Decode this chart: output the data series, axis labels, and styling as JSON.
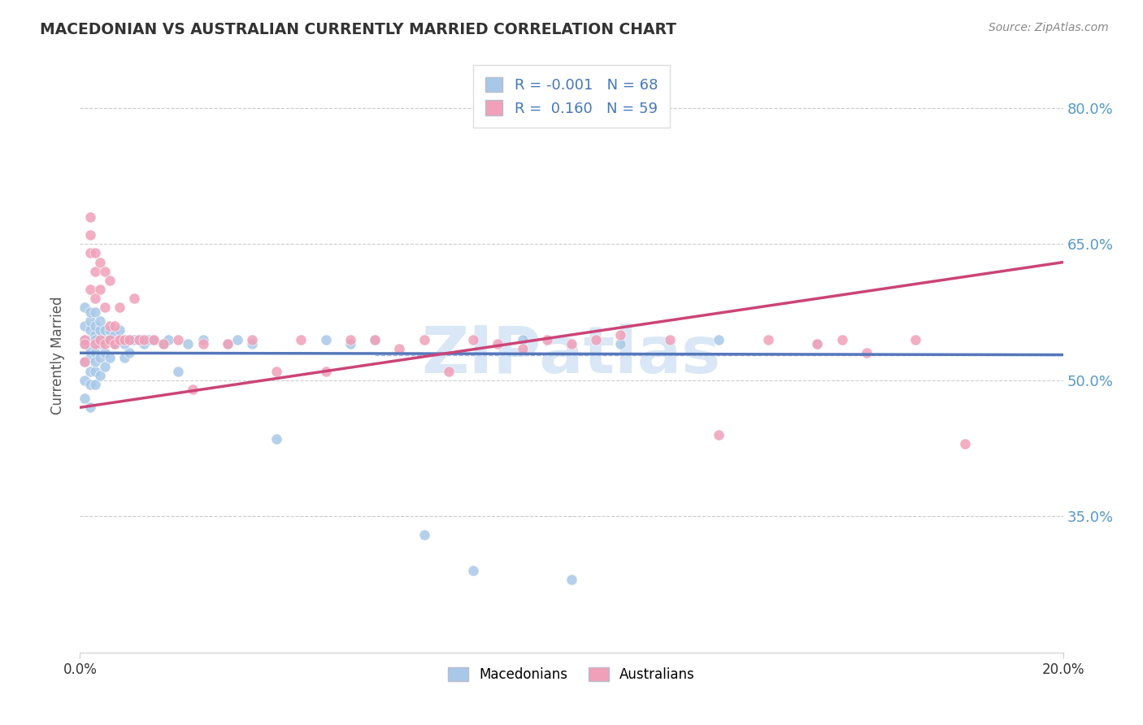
{
  "title": "MACEDONIAN VS AUSTRALIAN CURRENTLY MARRIED CORRELATION CHART",
  "source": "Source: ZipAtlas.com",
  "ylabel": "Currently Married",
  "legend_r": [
    -0.001,
    0.16
  ],
  "legend_n": [
    68,
    59
  ],
  "scatter_color_mac": "#a8c8e8",
  "scatter_color_aus": "#f0a0b8",
  "line_color_mac": "#5577bb",
  "line_color_aus": "#cc4477",
  "watermark": "ZIPatlas",
  "watermark_color": "#c0d8f0",
  "xmin": 0.0,
  "xmax": 0.2,
  "ymin": 0.2,
  "ymax": 0.855,
  "yticks": [
    0.35,
    0.5,
    0.65,
    0.8
  ],
  "ytick_labels": [
    "35.0%",
    "50.0%",
    "65.0%",
    "80.0%"
  ],
  "mac_x": [
    0.001,
    0.001,
    0.001,
    0.001,
    0.001,
    0.001,
    0.001,
    0.002,
    0.002,
    0.002,
    0.002,
    0.002,
    0.002,
    0.002,
    0.002,
    0.002,
    0.003,
    0.003,
    0.003,
    0.003,
    0.003,
    0.003,
    0.003,
    0.003,
    0.004,
    0.004,
    0.004,
    0.004,
    0.004,
    0.005,
    0.005,
    0.005,
    0.005,
    0.006,
    0.006,
    0.006,
    0.007,
    0.007,
    0.008,
    0.008,
    0.009,
    0.009,
    0.01,
    0.01,
    0.011,
    0.012,
    0.013,
    0.014,
    0.015,
    0.017,
    0.018,
    0.02,
    0.022,
    0.025,
    0.03,
    0.032,
    0.035,
    0.04,
    0.05,
    0.055,
    0.06,
    0.07,
    0.08,
    0.09,
    0.1,
    0.11,
    0.13,
    0.15
  ],
  "mac_y": [
    0.54,
    0.56,
    0.58,
    0.5,
    0.52,
    0.48,
    0.545,
    0.555,
    0.565,
    0.535,
    0.575,
    0.51,
    0.495,
    0.525,
    0.545,
    0.47,
    0.55,
    0.56,
    0.53,
    0.575,
    0.51,
    0.545,
    0.495,
    0.52,
    0.555,
    0.54,
    0.525,
    0.565,
    0.505,
    0.545,
    0.555,
    0.53,
    0.515,
    0.545,
    0.555,
    0.525,
    0.55,
    0.54,
    0.545,
    0.555,
    0.54,
    0.525,
    0.545,
    0.53,
    0.545,
    0.545,
    0.54,
    0.545,
    0.545,
    0.54,
    0.545,
    0.51,
    0.54,
    0.545,
    0.54,
    0.545,
    0.54,
    0.435,
    0.545,
    0.54,
    0.545,
    0.33,
    0.29,
    0.545,
    0.28,
    0.54,
    0.545,
    0.54
  ],
  "aus_x": [
    0.001,
    0.001,
    0.001,
    0.002,
    0.002,
    0.002,
    0.002,
    0.003,
    0.003,
    0.003,
    0.003,
    0.004,
    0.004,
    0.004,
    0.005,
    0.005,
    0.005,
    0.006,
    0.006,
    0.006,
    0.007,
    0.007,
    0.008,
    0.008,
    0.009,
    0.01,
    0.011,
    0.012,
    0.013,
    0.015,
    0.017,
    0.02,
    0.023,
    0.025,
    0.03,
    0.035,
    0.04,
    0.045,
    0.05,
    0.055,
    0.06,
    0.065,
    0.07,
    0.075,
    0.08,
    0.085,
    0.09,
    0.095,
    0.1,
    0.105,
    0.11,
    0.12,
    0.13,
    0.14,
    0.15,
    0.155,
    0.16,
    0.17,
    0.18
  ],
  "aus_y": [
    0.545,
    0.52,
    0.54,
    0.68,
    0.66,
    0.64,
    0.6,
    0.64,
    0.62,
    0.59,
    0.54,
    0.63,
    0.6,
    0.545,
    0.62,
    0.58,
    0.54,
    0.56,
    0.61,
    0.545,
    0.56,
    0.54,
    0.58,
    0.545,
    0.545,
    0.545,
    0.59,
    0.545,
    0.545,
    0.545,
    0.54,
    0.545,
    0.49,
    0.54,
    0.54,
    0.545,
    0.51,
    0.545,
    0.51,
    0.545,
    0.545,
    0.535,
    0.545,
    0.51,
    0.545,
    0.54,
    0.535,
    0.545,
    0.54,
    0.545,
    0.55,
    0.545,
    0.44,
    0.545,
    0.54,
    0.545,
    0.53,
    0.545,
    0.43
  ],
  "mac_line_x": [
    0.0,
    0.2
  ],
  "mac_line_y": [
    0.53,
    0.528
  ],
  "aus_line_x": [
    0.0,
    0.2
  ],
  "aus_line_y": [
    0.47,
    0.63
  ]
}
